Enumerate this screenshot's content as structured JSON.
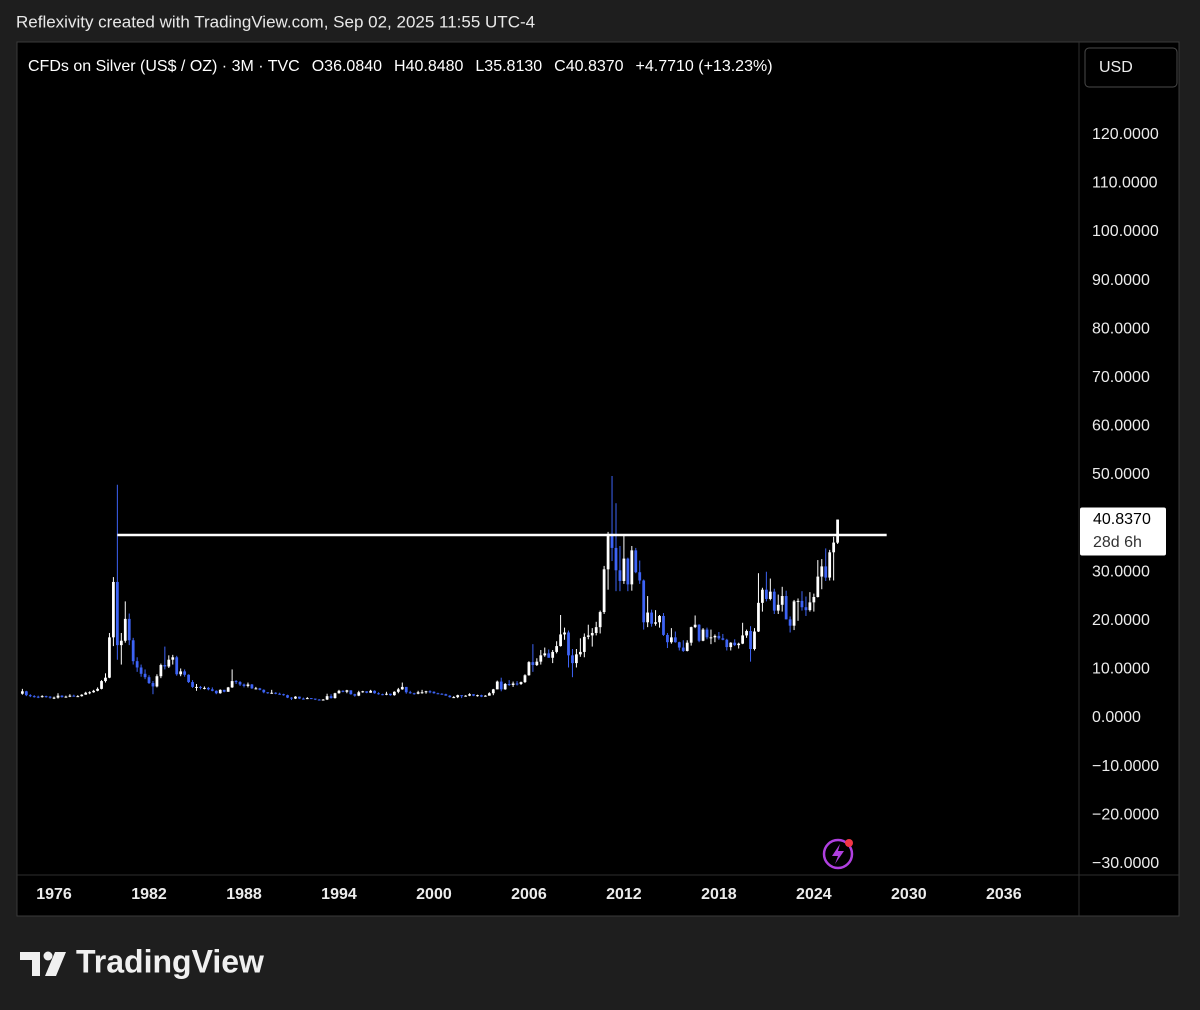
{
  "header": "Reflexivity created with TradingView.com, Sep 02, 2025 11:55 UTC-4",
  "currency": "USD",
  "brand": "TradingView",
  "chart_data": {
    "type": "candlestick",
    "title": "CFDs on Silver (US$ / OZ) · 3M · TVC",
    "legend_values": [
      "O36.0840",
      "H40.8480",
      "L35.8130",
      "C40.8370",
      "+4.7710 (+13.23%)"
    ],
    "up_color": "#ffffff",
    "down_color": "#3d63f5",
    "x": [
      1974,
      1974.25,
      1974.5,
      1974.75,
      1975,
      1975.25,
      1975.5,
      1975.75,
      1976,
      1976.25,
      1976.5,
      1976.75,
      1977,
      1977.25,
      1977.5,
      1977.75,
      1978,
      1978.25,
      1978.5,
      1978.75,
      1979,
      1979.25,
      1979.5,
      1979.75,
      1980,
      1980.25,
      1980.5,
      1980.75,
      1981,
      1981.25,
      1981.5,
      1981.75,
      1982,
      1982.25,
      1982.5,
      1982.75,
      1983,
      1983.25,
      1983.5,
      1983.75,
      1984,
      1984.25,
      1984.5,
      1984.75,
      1985,
      1985.25,
      1985.5,
      1985.75,
      1986,
      1986.25,
      1986.5,
      1986.75,
      1987,
      1987.25,
      1987.5,
      1987.75,
      1988,
      1988.25,
      1988.5,
      1988.75,
      1989,
      1989.25,
      1989.5,
      1989.75,
      1990,
      1990.25,
      1990.5,
      1990.75,
      1991,
      1991.25,
      1991.5,
      1991.75,
      1992,
      1992.25,
      1992.5,
      1992.75,
      1993,
      1993.25,
      1993.5,
      1993.75,
      1994,
      1994.25,
      1994.5,
      1994.75,
      1995,
      1995.25,
      1995.5,
      1995.75,
      1996,
      1996.25,
      1996.5,
      1996.75,
      1997,
      1997.25,
      1997.5,
      1997.75,
      1998,
      1998.25,
      1998.5,
      1998.75,
      1999,
      1999.25,
      1999.5,
      1999.75,
      2000,
      2000.25,
      2000.5,
      2000.75,
      2001,
      2001.25,
      2001.5,
      2001.75,
      2002,
      2002.25,
      2002.5,
      2002.75,
      2003,
      2003.25,
      2003.5,
      2003.75,
      2004,
      2004.25,
      2004.5,
      2004.75,
      2005,
      2005.25,
      2005.5,
      2005.75,
      2006,
      2006.25,
      2006.5,
      2006.75,
      2007,
      2007.25,
      2007.5,
      2007.75,
      2008,
      2008.25,
      2008.5,
      2008.75,
      2009,
      2009.25,
      2009.5,
      2009.75,
      2010,
      2010.25,
      2010.5,
      2010.75,
      2011,
      2011.25,
      2011.5,
      2011.75,
      2012,
      2012.25,
      2012.5,
      2012.75,
      2013,
      2013.25,
      2013.5,
      2013.75,
      2014,
      2014.25,
      2014.5,
      2014.75,
      2015,
      2015.25,
      2015.5,
      2015.75,
      2016,
      2016.25,
      2016.5,
      2016.75,
      2017,
      2017.25,
      2017.5,
      2017.75,
      2018,
      2018.25,
      2018.5,
      2018.75,
      2019,
      2019.25,
      2019.5,
      2019.75,
      2020,
      2020.25,
      2020.5,
      2020.75,
      2021,
      2021.25,
      2021.5,
      2021.75,
      2022,
      2022.25,
      2022.5,
      2022.75,
      2023,
      2023.25,
      2023.5,
      2023.75,
      2024,
      2024.25,
      2024.5,
      2024.75,
      2025,
      2025.25,
      2025.5
    ],
    "open": [
      5.0,
      5.5,
      4.7,
      4.5,
      4.4,
      4.3,
      4.5,
      4.4,
      4.2,
      4.2,
      4.6,
      4.3,
      4.4,
      4.6,
      4.5,
      4.5,
      4.8,
      5.2,
      5.3,
      5.6,
      6.0,
      7.6,
      8.3,
      16.6,
      28.0,
      15.0,
      15.9,
      20.4,
      16.0,
      11.7,
      10.4,
      9.1,
      8.4,
      7.2,
      6.5,
      8.6,
      10.9,
      10.6,
      12.0,
      12.5,
      9.0,
      9.6,
      8.9,
      7.4,
      6.4,
      6.4,
      6.2,
      6.2,
      5.9,
      5.6,
      5.1,
      5.8,
      5.4,
      6.3,
      7.6,
      7.4,
      6.9,
      6.6,
      6.9,
      6.1,
      6.1,
      5.8,
      5.3,
      5.1,
      5.2,
      5.0,
      4.9,
      4.7,
      4.2,
      4.0,
      4.4,
      4.0,
      3.9,
      4.1,
      4.0,
      3.8,
      3.7,
      3.8,
      4.5,
      4.1,
      5.1,
      5.6,
      5.4,
      5.7,
      4.9,
      4.6,
      5.3,
      5.5,
      5.2,
      5.6,
      5.1,
      4.9,
      4.8,
      5.0,
      4.7,
      5.4,
      5.9,
      6.4,
      5.3,
      5.1,
      5.0,
      5.3,
      5.3,
      5.5,
      5.4,
      5.1,
      5.0,
      4.9,
      4.6,
      4.3,
      4.3,
      4.7,
      4.6,
      4.6,
      4.9,
      4.6,
      4.7,
      4.4,
      4.6,
      5.1,
      5.9,
      7.5,
      5.9,
      7.0,
      6.8,
      7.1,
      7.0,
      7.4,
      8.8,
      11.5,
      10.9,
      11.6,
      12.9,
      13.3,
      12.4,
      13.6,
      14.8,
      17.2,
      17.6,
      12.9,
      11.3,
      13.1,
      13.6,
      16.7,
      17.0,
      17.5,
      18.7,
      21.8,
      30.6,
      37.9,
      35.0,
      30.4,
      28.2,
      32.8,
      27.5,
      34.5,
      30.0,
      28.3,
      19.7,
      21.7,
      19.4,
      19.7,
      21.0,
      17.1,
      15.6,
      16.6,
      15.6,
      14.5,
      13.8,
      15.5,
      18.7,
      19.2,
      15.9,
      18.2,
      16.6,
      16.6,
      16.9,
      16.4,
      16.1,
      14.6,
      15.5,
      15.0,
      15.3,
      17.0,
      17.9,
      14.2,
      17.8,
      23.7,
      26.4,
      24.5,
      26.0,
      22.1,
      23.3,
      25.1,
      20.3,
      19.0,
      24.0,
      24.1,
      22.8,
      22.2,
      23.8,
      24.9,
      29.1,
      31.2,
      28.9,
      34.1,
      36.084
    ],
    "high": [
      6.0,
      5.6,
      4.9,
      4.7,
      4.6,
      4.7,
      4.6,
      4.5,
      4.4,
      5.1,
      4.7,
      4.6,
      4.9,
      4.8,
      4.7,
      4.9,
      5.4,
      5.5,
      5.8,
      6.3,
      7.8,
      9.2,
      17.5,
      29.0,
      48.0,
      17.5,
      24.0,
      21.5,
      16.5,
      12.5,
      11.0,
      10.0,
      8.8,
      7.6,
      9.0,
      11.2,
      14.7,
      12.9,
      13.0,
      12.8,
      10.2,
      10.0,
      9.0,
      7.8,
      7.0,
      6.6,
      6.5,
      6.4,
      6.3,
      5.7,
      5.9,
      5.8,
      6.4,
      10.0,
      7.8,
      7.6,
      7.1,
      7.3,
      7.0,
      6.4,
      6.2,
      5.9,
      5.3,
      5.8,
      5.3,
      5.2,
      5.0,
      4.8,
      4.3,
      4.5,
      4.4,
      4.2,
      4.3,
      4.1,
      4.0,
      3.9,
      3.9,
      5.0,
      4.9,
      5.2,
      5.8,
      5.7,
      5.8,
      5.7,
      5.0,
      5.6,
      5.6,
      5.5,
      5.8,
      5.7,
      5.3,
      5.0,
      5.4,
      5.0,
      5.5,
      6.2,
      7.3,
      6.4,
      5.6,
      5.2,
      5.6,
      5.8,
      5.6,
      5.7,
      5.5,
      5.2,
      5.1,
      5.0,
      4.7,
      4.5,
      4.8,
      4.7,
      4.7,
      5.1,
      4.9,
      4.8,
      4.8,
      4.7,
      5.3,
      6.0,
      7.7,
      8.3,
      7.2,
      7.8,
      7.5,
      7.6,
      7.5,
      9.0,
      11.7,
      15.2,
      12.3,
      14.0,
      14.5,
      14.1,
      14.0,
      15.8,
      21.2,
      18.6,
      18.0,
      14.2,
      14.2,
      16.4,
      17.4,
      19.2,
      18.5,
      19.8,
      22.1,
      31.3,
      38.3,
      49.8,
      44.2,
      35.4,
      37.5,
      33.0,
      35.4,
      35.0,
      32.4,
      28.5,
      25.1,
      22.3,
      22.2,
      21.2,
      21.6,
      17.5,
      18.5,
      17.8,
      15.7,
      16.0,
      16.0,
      18.8,
      21.1,
      19.3,
      18.5,
      18.6,
      18.2,
      17.2,
      17.7,
      17.3,
      16.3,
      15.6,
      16.2,
      15.5,
      19.6,
      18.2,
      18.9,
      18.5,
      29.8,
      26.8,
      30.1,
      28.7,
      26.6,
      25.4,
      27.0,
      26.2,
      20.9,
      24.3,
      24.6,
      26.1,
      25.0,
      25.9,
      25.6,
      32.5,
      32.7,
      34.9,
      34.6,
      37.3,
      40.848
    ],
    "low": [
      4.8,
      4.5,
      4.3,
      4.2,
      4.1,
      4.2,
      4.2,
      4.0,
      3.9,
      4.0,
      4.2,
      4.2,
      4.3,
      4.4,
      4.4,
      4.4,
      4.8,
      4.9,
      5.2,
      5.5,
      5.9,
      7.3,
      8.2,
      14.8,
      12.0,
      11.0,
      15.5,
      15.0,
      11.0,
      9.5,
      8.5,
      8.0,
      7.0,
      4.9,
      6.3,
      8.2,
      10.0,
      10.3,
      11.0,
      8.7,
      8.6,
      8.5,
      7.2,
      6.2,
      5.6,
      5.9,
      5.9,
      5.7,
      5.5,
      4.9,
      5.0,
      5.3,
      5.4,
      6.2,
      7.0,
      6.6,
      6.3,
      6.3,
      6.0,
      5.9,
      5.7,
      5.1,
      5.0,
      5.0,
      4.9,
      4.8,
      4.6,
      4.1,
      3.7,
      3.9,
      3.9,
      3.8,
      3.9,
      3.9,
      3.7,
      3.6,
      3.6,
      3.7,
      4.0,
      4.0,
      5.0,
      5.3,
      5.1,
      4.8,
      4.4,
      4.5,
      5.2,
      5.1,
      5.2,
      5.0,
      4.8,
      4.7,
      4.7,
      4.6,
      4.6,
      5.1,
      5.8,
      5.0,
      5.0,
      4.8,
      4.9,
      5.0,
      5.0,
      5.1,
      5.0,
      4.9,
      4.8,
      4.6,
      4.2,
      4.2,
      4.1,
      4.1,
      4.4,
      4.5,
      4.5,
      4.4,
      4.3,
      4.4,
      4.6,
      4.7,
      5.9,
      5.5,
      5.8,
      6.6,
      6.4,
      6.7,
      6.8,
      7.2,
      8.7,
      9.5,
      10.7,
      11.0,
      12.6,
      12.4,
      11.3,
      13.3,
      14.7,
      16.1,
      10.4,
      8.4,
      10.4,
      12.6,
      12.5,
      16.2,
      14.7,
      17.0,
      17.4,
      21.4,
      26.4,
      32.3,
      26.1,
      26.1,
      27.6,
      26.1,
      26.2,
      29.8,
      27.6,
      18.2,
      18.7,
      18.8,
      19.0,
      18.6,
      16.9,
      14.4,
      15.3,
      15.5,
      13.9,
      13.6,
      13.7,
      14.9,
      18.5,
      15.6,
      15.8,
      16.2,
      15.2,
      15.6,
      16.1,
      16.0,
      13.9,
      13.9,
      14.8,
      14.3,
      15.2,
      16.5,
      11.6,
      13.9,
      17.7,
      21.9,
      24.0,
      24.2,
      21.4,
      21.4,
      21.9,
      20.3,
      17.6,
      18.1,
      20.0,
      22.1,
      21.0,
      21.9,
      21.9,
      24.8,
      26.5,
      28.2,
      28.3,
      28.3,
      35.813
    ],
    "close": [
      5.5,
      4.7,
      4.5,
      4.4,
      4.3,
      4.5,
      4.4,
      4.2,
      4.2,
      4.6,
      4.3,
      4.4,
      4.6,
      4.5,
      4.5,
      4.8,
      5.2,
      5.3,
      5.6,
      6.0,
      7.6,
      8.3,
      16.6,
      28.0,
      15.0,
      15.9,
      20.4,
      16.0,
      11.7,
      10.4,
      9.1,
      8.4,
      7.2,
      6.5,
      8.6,
      10.9,
      10.6,
      12.0,
      12.5,
      9.0,
      9.6,
      8.9,
      7.4,
      6.4,
      6.4,
      6.2,
      6.2,
      5.9,
      5.6,
      5.1,
      5.8,
      5.4,
      6.3,
      7.6,
      7.4,
      6.9,
      6.6,
      6.9,
      6.1,
      6.1,
      5.8,
      5.3,
      5.1,
      5.2,
      5.0,
      4.9,
      4.7,
      4.2,
      4.0,
      4.4,
      4.0,
      3.9,
      4.1,
      4.0,
      3.8,
      3.7,
      3.8,
      4.5,
      4.1,
      5.1,
      5.6,
      5.4,
      5.7,
      4.9,
      4.6,
      5.3,
      5.5,
      5.2,
      5.6,
      5.1,
      4.9,
      4.8,
      5.0,
      4.7,
      5.4,
      5.9,
      6.4,
      5.3,
      5.1,
      5.0,
      5.3,
      5.3,
      5.5,
      5.4,
      5.1,
      5.0,
      4.9,
      4.6,
      4.3,
      4.3,
      4.7,
      4.6,
      4.6,
      4.9,
      4.6,
      4.7,
      4.4,
      4.6,
      5.1,
      5.9,
      7.5,
      5.9,
      7.0,
      6.8,
      7.1,
      7.0,
      7.4,
      8.8,
      11.5,
      10.9,
      11.6,
      12.9,
      13.3,
      12.4,
      13.6,
      14.8,
      17.2,
      17.6,
      12.9,
      11.3,
      13.1,
      13.6,
      16.7,
      17.0,
      17.5,
      18.7,
      21.8,
      30.6,
      37.9,
      35.0,
      30.4,
      28.2,
      32.8,
      27.5,
      34.5,
      30.0,
      28.3,
      19.7,
      21.7,
      19.4,
      19.7,
      21.0,
      17.1,
      15.6,
      16.6,
      15.6,
      14.5,
      13.8,
      15.5,
      18.7,
      19.2,
      15.9,
      18.2,
      16.6,
      16.6,
      16.9,
      16.4,
      16.1,
      14.6,
      15.5,
      15.0,
      15.3,
      17.0,
      17.9,
      14.2,
      17.8,
      23.7,
      26.4,
      24.5,
      26.0,
      22.1,
      23.3,
      25.1,
      20.3,
      19.0,
      24.0,
      24.1,
      22.8,
      22.2,
      23.8,
      24.9,
      29.1,
      31.2,
      28.9,
      34.1,
      36.1,
      40.837
    ],
    "xlim": [
      1973.66,
      2040.75
    ],
    "xticks": [
      1976,
      1982,
      1988,
      1994,
      2000,
      2006,
      2012,
      2018,
      2024,
      2030,
      2036
    ],
    "ylim": [
      -32.3,
      139.1
    ],
    "yticks": [
      {
        "value": -30,
        "label": "−30.0000"
      },
      {
        "value": -20,
        "label": "−20.0000"
      },
      {
        "value": -10,
        "label": "−10.0000"
      },
      {
        "value": 0,
        "label": "0.0000"
      },
      {
        "value": 10,
        "label": "10.0000"
      },
      {
        "value": 20,
        "label": "20.0000"
      },
      {
        "value": 30,
        "label": "30.0000"
      },
      {
        "value": 50,
        "label": "50.0000"
      },
      {
        "value": 60,
        "label": "60.0000"
      },
      {
        "value": 70,
        "label": "70.0000"
      },
      {
        "value": 80,
        "label": "80.0000"
      },
      {
        "value": 90,
        "label": "90.0000"
      },
      {
        "value": 100,
        "label": "100.0000"
      },
      {
        "value": 110,
        "label": "110.0000"
      },
      {
        "value": 120,
        "label": "120.0000"
      }
    ],
    "grid": false,
    "hline": {
      "value": 37.65,
      "x": [
        1980.0,
        2028.6
      ],
      "color": "#ffffff"
    },
    "last_price": {
      "value": 40.837,
      "label": "40.8370",
      "countdown": "28d 6h"
    }
  }
}
